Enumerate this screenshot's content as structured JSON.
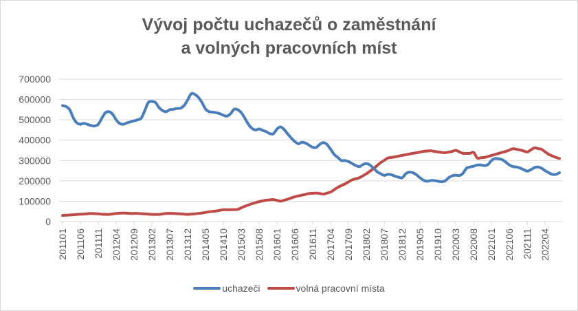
{
  "chart_data": {
    "type": "line",
    "title_line1": "Vývoj počtu uchazečů o zaměstnání",
    "title_line2": "a volných pracovních míst",
    "xlabel": "",
    "ylabel": "",
    "ylim": [
      0,
      700000
    ],
    "y_ticks": [
      0,
      100000,
      200000,
      300000,
      400000,
      500000,
      600000,
      700000
    ],
    "x_tick_labels": [
      "201101",
      "201106",
      "201111",
      "201204",
      "201209",
      "201302",
      "201307",
      "201312",
      "201405",
      "201410",
      "201503",
      "201508",
      "201601",
      "201606",
      "201611",
      "201704",
      "201709",
      "201802",
      "201807",
      "201812",
      "201905",
      "201910",
      "202003",
      "202008",
      "202101",
      "202106",
      "202111",
      "202204"
    ],
    "grid": true,
    "legend_position": "bottom",
    "series": [
      {
        "name": "uchazeči",
        "color": "#4a7ebb",
        "anchors": [
          [
            "201101",
            570000
          ],
          [
            "201102",
            565000
          ],
          [
            "201103",
            550000
          ],
          [
            "201104",
            510000
          ],
          [
            "201105",
            485000
          ],
          [
            "201106",
            478000
          ],
          [
            "201107",
            483000
          ],
          [
            "201108",
            477000
          ],
          [
            "201109",
            472000
          ],
          [
            "201110",
            470000
          ],
          [
            "201111",
            478000
          ],
          [
            "201112",
            508000
          ],
          [
            "201201",
            535000
          ],
          [
            "201202",
            540000
          ],
          [
            "201203",
            528000
          ],
          [
            "201204",
            500000
          ],
          [
            "201205",
            482000
          ],
          [
            "201206",
            478000
          ],
          [
            "201207",
            485000
          ],
          [
            "201208",
            490000
          ],
          [
            "201209",
            495000
          ],
          [
            "201210",
            500000
          ],
          [
            "201211",
            508000
          ],
          [
            "201212",
            545000
          ],
          [
            "201301",
            585000
          ],
          [
            "201302",
            590000
          ],
          [
            "201303",
            585000
          ],
          [
            "201304",
            560000
          ],
          [
            "201305",
            545000
          ],
          [
            "201306",
            540000
          ],
          [
            "201307",
            550000
          ],
          [
            "201308",
            552000
          ],
          [
            "201309",
            556000
          ],
          [
            "201310",
            557000
          ],
          [
            "201311",
            570000
          ],
          [
            "201312",
            598000
          ],
          [
            "201401",
            628000
          ],
          [
            "201402",
            625000
          ],
          [
            "201403",
            610000
          ],
          [
            "201404",
            585000
          ],
          [
            "201405",
            553000
          ],
          [
            "201406",
            540000
          ],
          [
            "201407",
            538000
          ],
          [
            "201408",
            535000
          ],
          [
            "201409",
            530000
          ],
          [
            "201410",
            522000
          ],
          [
            "201411",
            518000
          ],
          [
            "201412",
            530000
          ],
          [
            "201501",
            552000
          ],
          [
            "201502",
            550000
          ],
          [
            "201503",
            535000
          ],
          [
            "201504",
            508000
          ],
          [
            "201505",
            478000
          ],
          [
            "201506",
            458000
          ],
          [
            "201507",
            450000
          ],
          [
            "201508",
            455000
          ],
          [
            "201509",
            448000
          ],
          [
            "201510",
            442000
          ],
          [
            "201511",
            432000
          ],
          [
            "201512",
            432000
          ],
          [
            "201601",
            455000
          ],
          [
            "201602",
            465000
          ],
          [
            "201603",
            452000
          ],
          [
            "201604",
            430000
          ],
          [
            "201605",
            410000
          ],
          [
            "201606",
            393000
          ],
          [
            "201607",
            382000
          ],
          [
            "201608",
            390000
          ],
          [
            "201609",
            385000
          ],
          [
            "201610",
            375000
          ],
          [
            "201611",
            365000
          ],
          [
            "201612",
            365000
          ],
          [
            "201701",
            380000
          ],
          [
            "201702",
            388000
          ],
          [
            "201703",
            378000
          ],
          [
            "201704",
            355000
          ],
          [
            "201705",
            330000
          ],
          [
            "201706",
            315000
          ],
          [
            "201707",
            300000
          ],
          [
            "201708",
            300000
          ],
          [
            "201709",
            295000
          ],
          [
            "201710",
            285000
          ],
          [
            "201711",
            276000
          ],
          [
            "201712",
            270000
          ],
          [
            "201801",
            280000
          ],
          [
            "201802",
            285000
          ],
          [
            "201803",
            278000
          ],
          [
            "201804",
            262000
          ],
          [
            "201805",
            245000
          ],
          [
            "201806",
            235000
          ],
          [
            "201807",
            227000
          ],
          [
            "201808",
            232000
          ],
          [
            "201809",
            230000
          ],
          [
            "201810",
            223000
          ],
          [
            "201811",
            218000
          ],
          [
            "201812",
            215000
          ],
          [
            "201901",
            235000
          ],
          [
            "201902",
            243000
          ],
          [
            "201903",
            240000
          ],
          [
            "201904",
            230000
          ],
          [
            "201905",
            215000
          ],
          [
            "201906",
            203000
          ],
          [
            "201907",
            198000
          ],
          [
            "201908",
            202000
          ],
          [
            "201909",
            202000
          ],
          [
            "201910",
            198000
          ],
          [
            "201911",
            196000
          ],
          [
            "201912",
            200000
          ],
          [
            "202001",
            215000
          ],
          [
            "202002",
            225000
          ],
          [
            "202003",
            228000
          ],
          [
            "202004",
            226000
          ],
          [
            "202005",
            237000
          ],
          [
            "202006",
            262000
          ],
          [
            "202007",
            268000
          ],
          [
            "202008",
            272000
          ],
          [
            "202009",
            278000
          ],
          [
            "202010",
            278000
          ],
          [
            "202011",
            275000
          ],
          [
            "202012",
            280000
          ],
          [
            "202101",
            300000
          ],
          [
            "202102",
            310000
          ],
          [
            "202103",
            308000
          ],
          [
            "202104",
            304000
          ],
          [
            "202105",
            292000
          ],
          [
            "202106",
            278000
          ],
          [
            "202107",
            270000
          ],
          [
            "202108",
            268000
          ],
          [
            "202109",
            263000
          ],
          [
            "202110",
            255000
          ],
          [
            "202111",
            248000
          ],
          [
            "202112",
            255000
          ],
          [
            "202201",
            265000
          ],
          [
            "202202",
            268000
          ],
          [
            "202203",
            262000
          ],
          [
            "202204",
            250000
          ],
          [
            "202205",
            240000
          ],
          [
            "202206",
            232000
          ],
          [
            "202207",
            232000
          ],
          [
            "202208",
            240000
          ]
        ]
      },
      {
        "name": "volná pracovní místa",
        "color": "#be4b48",
        "anchors": [
          [
            "201101",
            30000
          ],
          [
            "201103",
            32000
          ],
          [
            "201105",
            35000
          ],
          [
            "201107",
            37000
          ],
          [
            "201109",
            40000
          ],
          [
            "201111",
            38000
          ],
          [
            "201112",
            36000
          ],
          [
            "201202",
            35000
          ],
          [
            "201204",
            40000
          ],
          [
            "201206",
            42000
          ],
          [
            "201208",
            40000
          ],
          [
            "201210",
            40000
          ],
          [
            "201212",
            38000
          ],
          [
            "201302",
            35000
          ],
          [
            "201304",
            35000
          ],
          [
            "201306",
            40000
          ],
          [
            "201308",
            40000
          ],
          [
            "201310",
            38000
          ],
          [
            "201312",
            35000
          ],
          [
            "201402",
            38000
          ],
          [
            "201404",
            42000
          ],
          [
            "201406",
            48000
          ],
          [
            "201408",
            52000
          ],
          [
            "201410",
            58000
          ],
          [
            "201412",
            58000
          ],
          [
            "201502",
            60000
          ],
          [
            "201504",
            75000
          ],
          [
            "201506",
            88000
          ],
          [
            "201508",
            98000
          ],
          [
            "201510",
            105000
          ],
          [
            "201512",
            108000
          ],
          [
            "201602",
            100000
          ],
          [
            "201604",
            110000
          ],
          [
            "201606",
            122000
          ],
          [
            "201608",
            130000
          ],
          [
            "201610",
            138000
          ],
          [
            "201612",
            140000
          ],
          [
            "201702",
            135000
          ],
          [
            "201704",
            145000
          ],
          [
            "201706",
            168000
          ],
          [
            "201708",
            185000
          ],
          [
            "201710",
            205000
          ],
          [
            "201712",
            215000
          ],
          [
            "201802",
            235000
          ],
          [
            "201804",
            260000
          ],
          [
            "201806",
            290000
          ],
          [
            "201808",
            312000
          ],
          [
            "201810",
            318000
          ],
          [
            "201812",
            325000
          ],
          [
            "201902",
            332000
          ],
          [
            "201904",
            338000
          ],
          [
            "201906",
            345000
          ],
          [
            "201908",
            348000
          ],
          [
            "201910",
            342000
          ],
          [
            "201912",
            338000
          ],
          [
            "202002",
            345000
          ],
          [
            "202003",
            350000
          ],
          [
            "202005",
            335000
          ],
          [
            "202007",
            335000
          ],
          [
            "202008",
            340000
          ],
          [
            "202009",
            312000
          ],
          [
            "202011",
            315000
          ],
          [
            "202101",
            325000
          ],
          [
            "202103",
            335000
          ],
          [
            "202105",
            345000
          ],
          [
            "202107",
            358000
          ],
          [
            "202109",
            352000
          ],
          [
            "202111",
            342000
          ],
          [
            "202201",
            362000
          ],
          [
            "202203",
            355000
          ],
          [
            "202205",
            330000
          ],
          [
            "202207",
            315000
          ],
          [
            "202208",
            310000
          ]
        ]
      }
    ]
  }
}
